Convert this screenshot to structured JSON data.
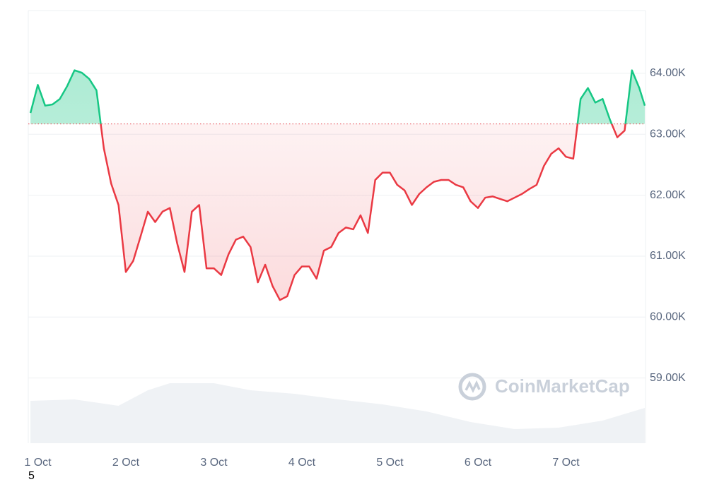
{
  "chart_data": {
    "type": "line",
    "x": [
      -2,
      0,
      2,
      4,
      6,
      8,
      10,
      12,
      14,
      16,
      18,
      20,
      22,
      24,
      26,
      28,
      30,
      32,
      34,
      36,
      38,
      40,
      42,
      44,
      46,
      48,
      50,
      52,
      54,
      56,
      58,
      60,
      62,
      64,
      66,
      68,
      70,
      72,
      74,
      76,
      78,
      80,
      82,
      84,
      86,
      88,
      90,
      92,
      94,
      96,
      98,
      100,
      102,
      104,
      106,
      108,
      110,
      112,
      114,
      116,
      118,
      120,
      122,
      124,
      126,
      128,
      130,
      132,
      134,
      136,
      138,
      140,
      142,
      144,
      146,
      148,
      150,
      152,
      154,
      156,
      158,
      160,
      162,
      164,
      165.5
    ],
    "values": [
      63350,
      63810,
      63470,
      63490,
      63580,
      63790,
      64050,
      64010,
      63910,
      63720,
      62770,
      62190,
      61840,
      60740,
      60920,
      61320,
      61730,
      61560,
      61730,
      61790,
      61210,
      60740,
      61730,
      61840,
      60800,
      60800,
      60690,
      61030,
      61270,
      61320,
      61150,
      60570,
      60860,
      60510,
      60280,
      60340,
      60690,
      60830,
      60830,
      60630,
      61090,
      61150,
      61380,
      61470,
      61440,
      61670,
      61380,
      62250,
      62370,
      62370,
      62170,
      62080,
      61840,
      62020,
      62130,
      62220,
      62250,
      62250,
      62170,
      62130,
      61900,
      61790,
      61960,
      61980,
      61940,
      61900,
      61960,
      62020,
      62100,
      62170,
      62480,
      62680,
      62770,
      62630,
      62600,
      63580,
      63760,
      63520,
      63580,
      63240,
      62950,
      63060,
      64050,
      63760,
      63470
    ],
    "baseline": 63170,
    "color_up": "#16c784",
    "color_down": "#ea3943",
    "xlim": [
      -2.6,
      165.7
    ],
    "xticks": [
      {
        "value": 0,
        "label": "1 Oct"
      },
      {
        "value": 24,
        "label": "2 Oct"
      },
      {
        "value": 48,
        "label": "3 Oct"
      },
      {
        "value": 72,
        "label": "4 Oct"
      },
      {
        "value": 96,
        "label": "5 Oct"
      },
      {
        "value": 120,
        "label": "6 Oct"
      },
      {
        "value": 144,
        "label": "7 Oct"
      }
    ],
    "ylim": [
      57930,
      65030
    ],
    "yticks": [
      {
        "value": 59000,
        "label": "59.00K"
      },
      {
        "value": 60000,
        "label": "60.00K"
      },
      {
        "value": 61000,
        "label": "61.00K"
      },
      {
        "value": 62000,
        "label": "62.00K"
      },
      {
        "value": 63000,
        "label": "63.00K"
      },
      {
        "value": 64000,
        "label": "64.00K"
      }
    ],
    "grid": true,
    "volume": {
      "x": [
        -2,
        10,
        22,
        30,
        36,
        48,
        58,
        70,
        82,
        94,
        106,
        118,
        130,
        142,
        154,
        165.5
      ],
      "values": [
        60,
        62,
        53,
        75,
        85,
        85,
        75,
        70,
        62,
        55,
        45,
        30,
        20,
        22,
        32,
        50
      ],
      "color": "#eff2f5"
    },
    "y2lim": [
      0,
      100
    ],
    "watermark": "CoinMarketCap",
    "footnote": "5"
  }
}
